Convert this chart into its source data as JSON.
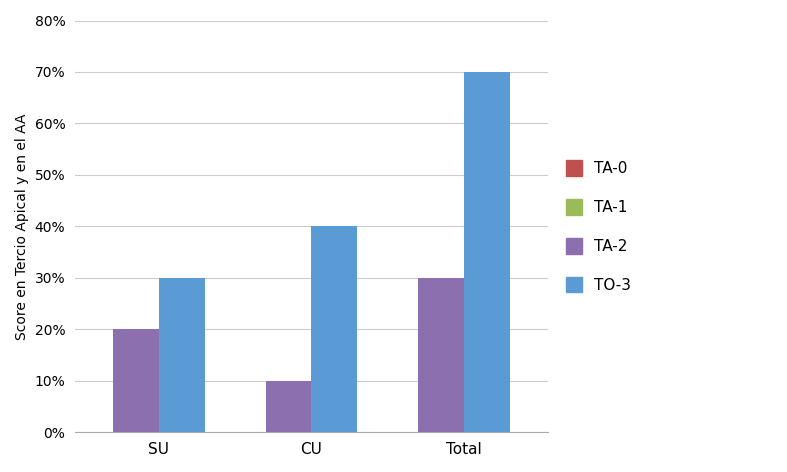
{
  "categories": [
    "SU",
    "CU",
    "Total"
  ],
  "series": {
    "TA-0": [
      0,
      0,
      0
    ],
    "TA-1": [
      0,
      0,
      0
    ],
    "TA-2": [
      0.2,
      0.1,
      0.3
    ],
    "TO-3": [
      0.3,
      0.4,
      0.7
    ]
  },
  "colors": {
    "TA-0": "#C0504D",
    "TA-1": "#9BBB59",
    "TA-2": "#8B6FAE",
    "TO-3": "#5B9BD5"
  },
  "ylabel": "Score en Tercio Apical y en el AA",
  "ylim": [
    0,
    0.8
  ],
  "yticks": [
    0,
    0.1,
    0.2,
    0.3,
    0.4,
    0.5,
    0.6,
    0.7,
    0.8
  ],
  "ytick_labels": [
    "0%",
    "10%",
    "20%",
    "30%",
    "40%",
    "50%",
    "60%",
    "70%",
    "80%"
  ],
  "bar_width": 0.3,
  "background_color": "#FFFFFF",
  "legend_order": [
    "TA-0",
    "TA-1",
    "TA-2",
    "TO-3"
  ],
  "grid_color": "#CCCCCC",
  "spine_color": "#AAAAAA"
}
